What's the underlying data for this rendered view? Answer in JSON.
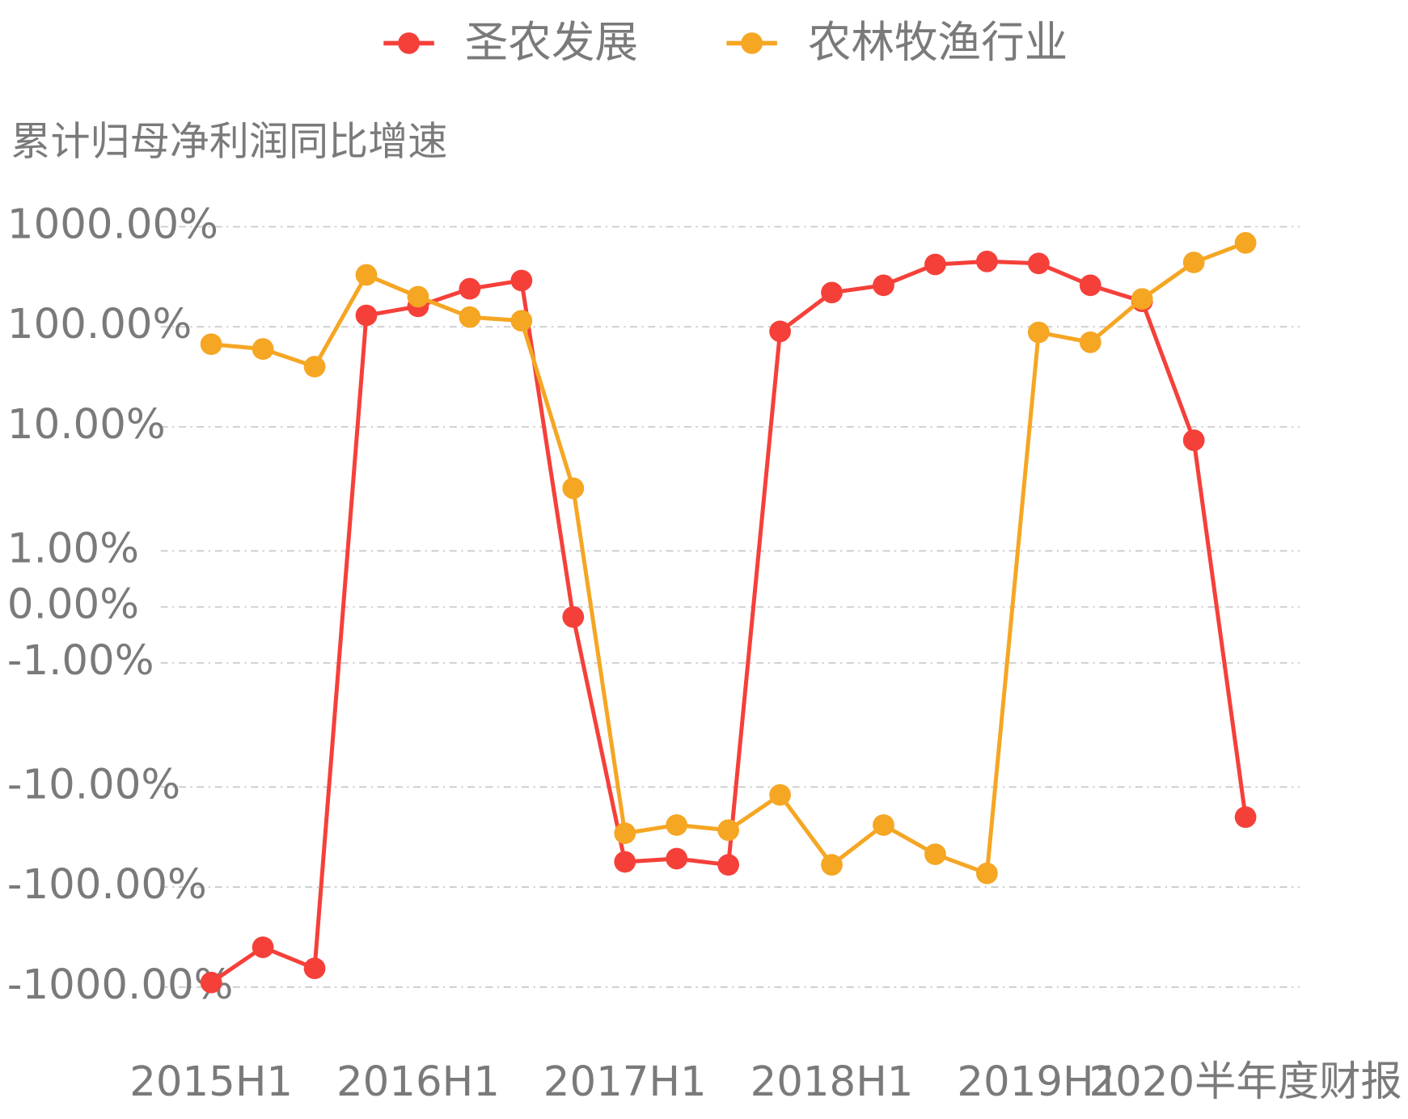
{
  "chart_data": {
    "type": "line",
    "y_label": "累计归母净利润同比增速",
    "categories": [
      "2015H1",
      null,
      null,
      null,
      "2016H1",
      null,
      null,
      null,
      "2017H1",
      null,
      null,
      null,
      "2018H1",
      null,
      null,
      null,
      "2019H1",
      null,
      null,
      null,
      "2020半年度财报"
    ],
    "series": [
      {
        "name": "圣农发展",
        "color": "#f5403a",
        "values": [
          -900,
          -400,
          -650,
          130,
          160,
          240,
          290,
          -0.18,
          -56,
          -52,
          -60,
          90,
          220,
          260,
          420,
          450,
          430,
          260,
          180,
          7.8,
          -20
        ]
      },
      {
        "name": "农林牧渔行业",
        "color": "#f5a623",
        "values": [
          67,
          60,
          40,
          330,
          200,
          125,
          115,
          3.2,
          -29,
          -24,
          -27,
          -12,
          -60,
          -24,
          -47,
          -73,
          88,
          70,
          190,
          440,
          690
        ]
      }
    ],
    "y_scale": "symlog",
    "ylim": [
      -1000,
      1000
    ],
    "yticks": [
      {
        "value": 1000,
        "label": "1000.00%"
      },
      {
        "value": 100,
        "label": "100.00%"
      },
      {
        "value": 10,
        "label": "10.00%"
      },
      {
        "value": 1,
        "label": "1.00%"
      },
      {
        "value": 0,
        "label": "0.00%"
      },
      {
        "value": -1,
        "label": "-1.00%"
      },
      {
        "value": -10,
        "label": "-10.00%"
      },
      {
        "value": -100,
        "label": "-100.00%"
      },
      {
        "value": -1000,
        "label": "-1000.00%"
      }
    ],
    "grid": true,
    "legend": "top"
  }
}
